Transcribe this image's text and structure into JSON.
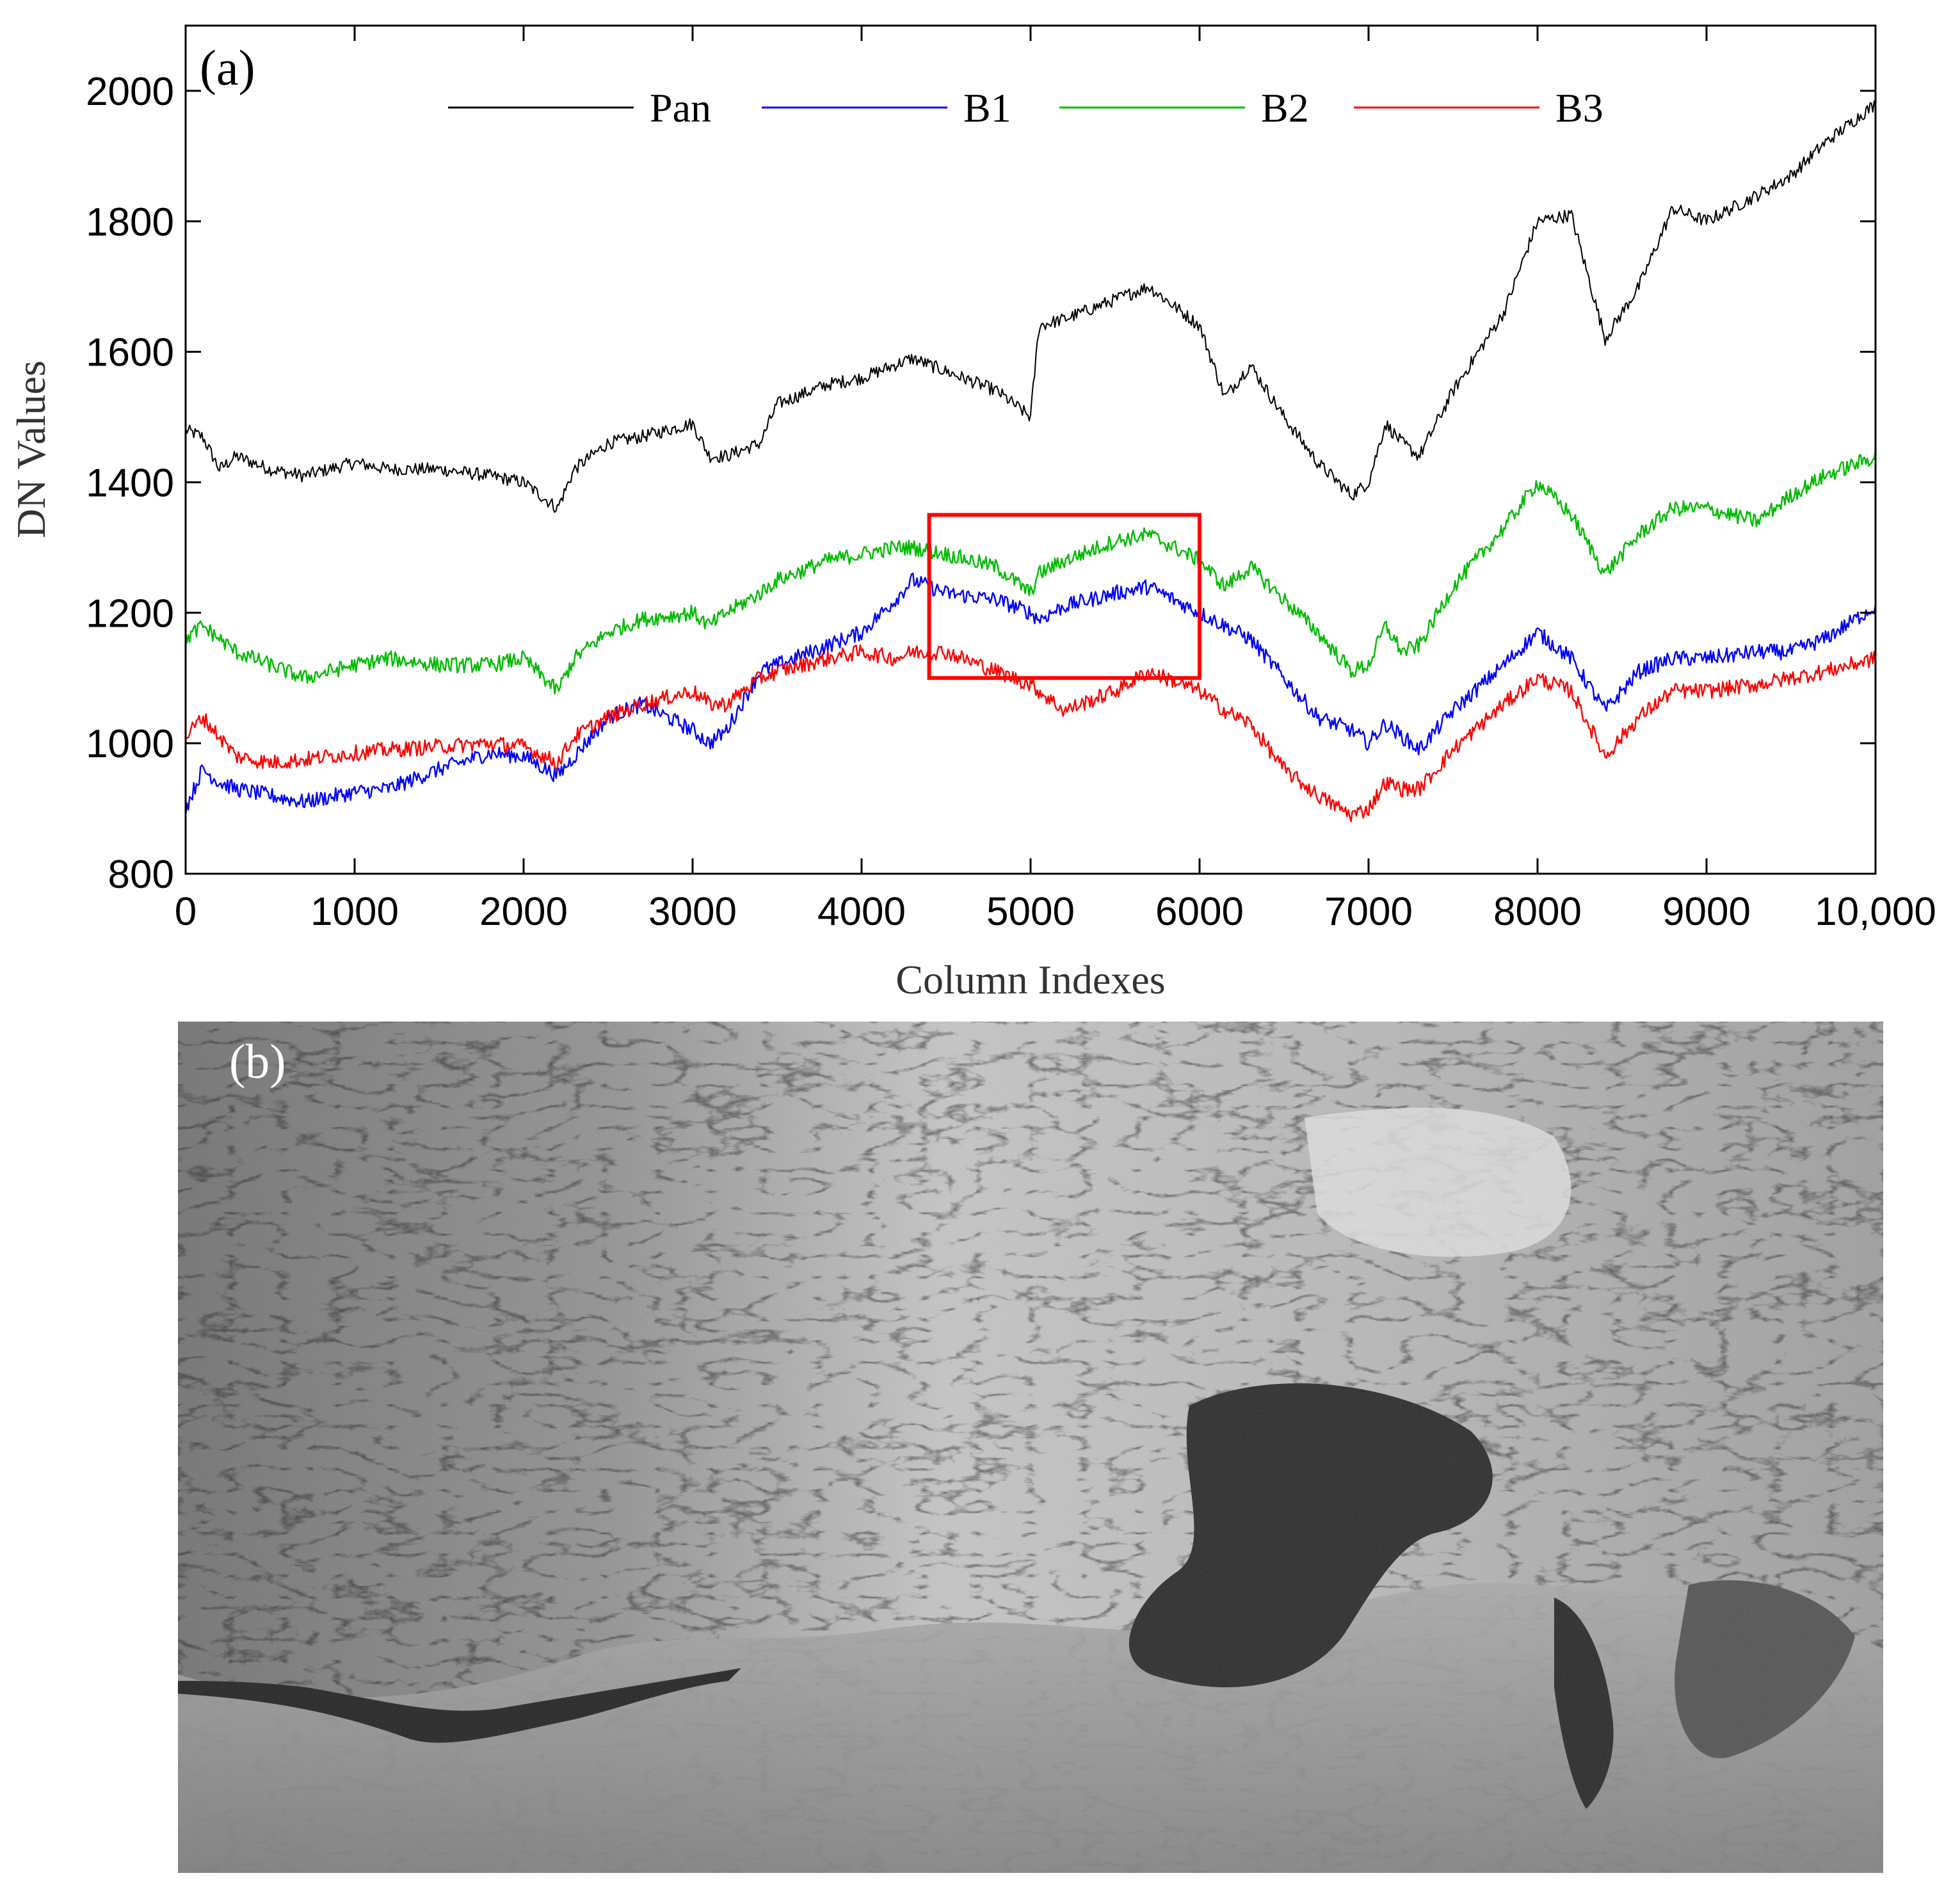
{
  "chart_data": {
    "type": "line",
    "panel_label": "(a)",
    "xlabel": "Column Indexes",
    "ylabel": "DN Values",
    "xlim": [
      0,
      10000
    ],
    "ylim": [
      800,
      2100
    ],
    "xticks": [
      0,
      1000,
      2000,
      3000,
      4000,
      5000,
      6000,
      7000,
      8000,
      9000,
      10000
    ],
    "xtick_labels": [
      "0",
      "1000",
      "2000",
      "3000",
      "4000",
      "5000",
      "6000",
      "7000",
      "8000",
      "9000",
      "10,000"
    ],
    "yticks": [
      800,
      1000,
      1200,
      1400,
      1600,
      1800,
      2000
    ],
    "ytick_labels": [
      "800",
      "1000",
      "1200",
      "1400",
      "1600",
      "1800",
      "2000"
    ],
    "grid": false,
    "legend_position": "top, horizontal",
    "x": [
      0,
      100,
      200,
      300,
      500,
      700,
      1000,
      1200,
      1500,
      1800,
      2000,
      2200,
      2300,
      2500,
      2700,
      3000,
      3100,
      3200,
      3400,
      3500,
      3800,
      4000,
      4200,
      4300,
      4500,
      4800,
      5000,
      5050,
      5200,
      5500,
      5700,
      6000,
      6150,
      6300,
      6500,
      6700,
      6900,
      7000,
      7100,
      7200,
      7300,
      7500,
      7800,
      8000,
      8200,
      8400,
      8600,
      8800,
      9000,
      9300,
      9500,
      9700,
      10000
    ],
    "series": [
      {
        "name": "Pan",
        "color": "#000000",
        "values": [
          1480,
          1470,
          1420,
          1440,
          1420,
          1410,
          1430,
          1420,
          1420,
          1410,
          1400,
          1360,
          1420,
          1460,
          1470,
          1490,
          1440,
          1440,
          1460,
          1520,
          1550,
          1560,
          1580,
          1590,
          1570,
          1540,
          1500,
          1640,
          1650,
          1680,
          1700,
          1640,
          1530,
          1580,
          1500,
          1430,
          1380,
          1400,
          1490,
          1460,
          1440,
          1540,
          1660,
          1800,
          1810,
          1620,
          1700,
          1820,
          1800,
          1840,
          1870,
          1920,
          1980
        ]
      },
      {
        "name": "B1",
        "color": "#0000ff",
        "values": [
          900,
          960,
          940,
          930,
          920,
          910,
          925,
          930,
          960,
          985,
          980,
          950,
          980,
          1040,
          1060,
          1020,
          1000,
          1020,
          1110,
          1120,
          1150,
          1170,
          1220,
          1250,
          1230,
          1220,
          1200,
          1190,
          1210,
          1230,
          1240,
          1200,
          1180,
          1160,
          1100,
          1040,
          1020,
          1000,
          1030,
          1010,
          990,
          1050,
          1120,
          1170,
          1130,
          1050,
          1110,
          1130,
          1130,
          1140,
          1140,
          1160,
          1210
        ]
      },
      {
        "name": "B2",
        "color": "#00bb00",
        "values": [
          1160,
          1180,
          1160,
          1140,
          1120,
          1100,
          1120,
          1130,
          1120,
          1120,
          1130,
          1080,
          1130,
          1170,
          1190,
          1200,
          1180,
          1200,
          1230,
          1250,
          1280,
          1290,
          1300,
          1300,
          1290,
          1270,
          1230,
          1260,
          1280,
          1310,
          1320,
          1280,
          1240,
          1270,
          1220,
          1170,
          1110,
          1120,
          1180,
          1140,
          1150,
          1240,
          1330,
          1400,
          1350,
          1260,
          1320,
          1360,
          1360,
          1340,
          1380,
          1410,
          1440
        ]
      },
      {
        "name": "B3",
        "color": "#ff0000",
        "values": [
          1010,
          1040,
          1010,
          980,
          970,
          975,
          985,
          990,
          995,
          1000,
          995,
          970,
          1010,
          1040,
          1060,
          1080,
          1060,
          1060,
          1100,
          1110,
          1130,
          1140,
          1130,
          1140,
          1140,
          1110,
          1090,
          1080,
          1050,
          1080,
          1110,
          1080,
          1050,
          1030,
          960,
          920,
          890,
          900,
          940,
          930,
          930,
          990,
          1060,
          1100,
          1080,
          980,
          1040,
          1080,
          1080,
          1090,
          1100,
          1110,
          1130
        ]
      }
    ],
    "highlight_box": {
      "x_range": [
        4400,
        6000
      ],
      "y_range": [
        1100,
        1350
      ],
      "color": "#ff0000"
    }
  },
  "image_panel": {
    "label": "(b)"
  }
}
